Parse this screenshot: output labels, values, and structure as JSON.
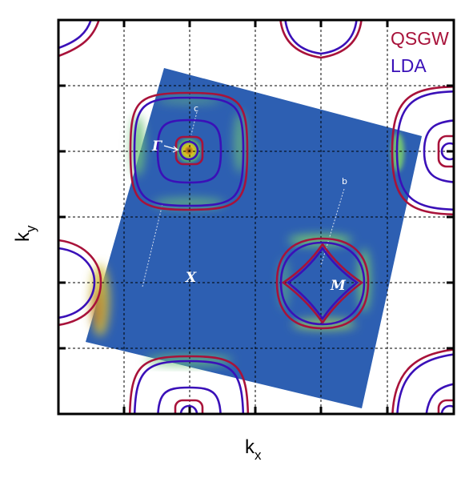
{
  "chart_data": {
    "type": "contour",
    "xlabel": "kx",
    "ylabel": "ky",
    "grid": true,
    "legend": {
      "placement": "top-right",
      "entries": [
        {
          "name": "QSGW",
          "color": "#a8123a"
        },
        {
          "name": "LDA",
          "color": "#3a10b8"
        }
      ]
    },
    "series": [
      {
        "name": "QSGW",
        "color": "#a8123a"
      },
      {
        "name": "LDA",
        "color": "#3a10b8"
      }
    ],
    "high_symmetry_labels": [
      "Γ",
      "X",
      "M"
    ],
    "cut_labels": [
      "c",
      "b"
    ],
    "colors": {
      "background_map": "#2a5bb0",
      "axis": "#000000",
      "grid": "#000000",
      "label_text": "#ffffff"
    }
  },
  "axes": {
    "x": {
      "label_main": "k",
      "label_sub": "x"
    },
    "y": {
      "label_main": "k",
      "label_sub": "y"
    }
  },
  "legend": {
    "qsgw": "QSGW",
    "lda": "LDA"
  },
  "labels": {
    "gamma": "Γ",
    "x": "X",
    "m": "M",
    "cut_c": "c",
    "cut_b": "b"
  }
}
